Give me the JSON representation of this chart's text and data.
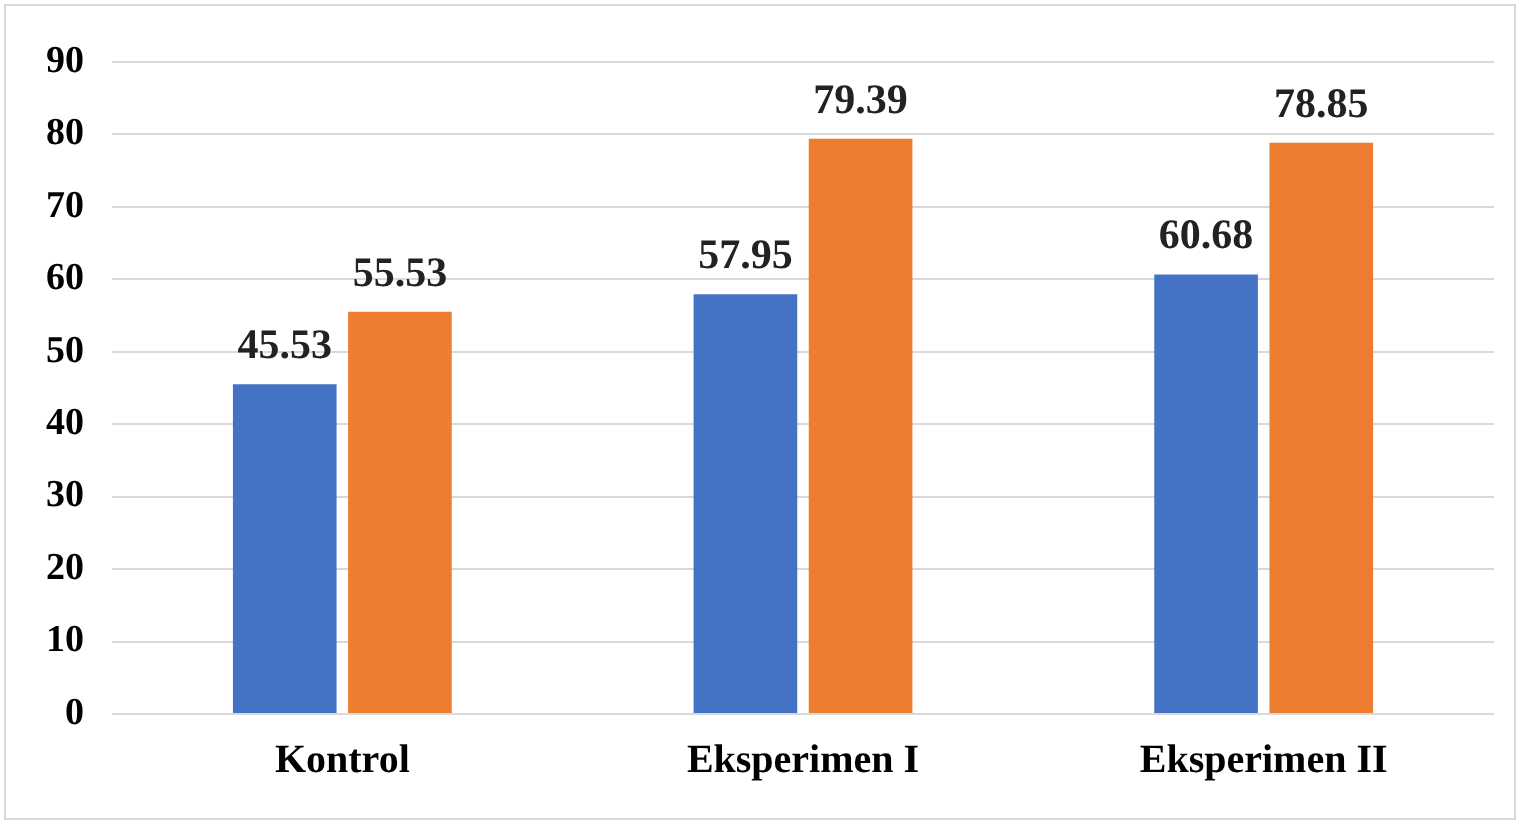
{
  "chart_data": {
    "type": "bar",
    "categories": [
      "Kontrol",
      "Eksperimen I",
      "Eksperimen II"
    ],
    "series": [
      {
        "color": "#4472c4",
        "values": [
          45.53,
          57.95,
          60.68
        ]
      },
      {
        "color": "#ed7d31",
        "values": [
          55.53,
          79.39,
          78.85
        ]
      }
    ],
    "ylim": [
      0,
      90
    ],
    "yticks": [
      0,
      10,
      20,
      30,
      40,
      50,
      60,
      70,
      80,
      90
    ],
    "grid": "y",
    "data_labels": true,
    "legend": false
  }
}
